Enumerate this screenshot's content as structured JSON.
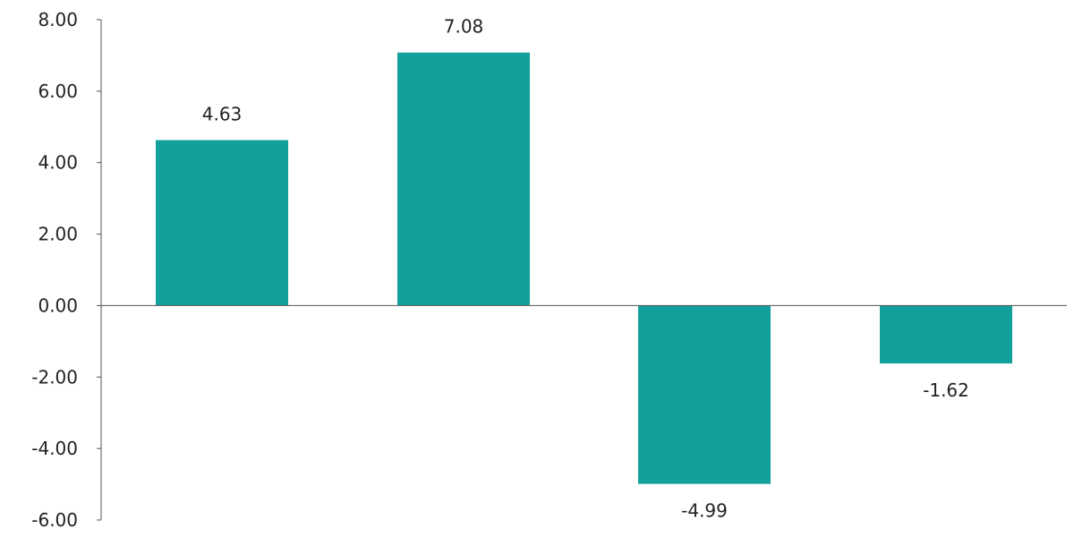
{
  "chart_data": {
    "type": "bar",
    "title": "",
    "xlabel": "",
    "ylabel": "",
    "categories": [
      "",
      "",
      "",
      ""
    ],
    "values": [
      4.63,
      7.08,
      -4.99,
      -1.62
    ],
    "value_labels": [
      "4.63",
      "7.08",
      "-4.99",
      "-1.62"
    ],
    "ylim": [
      -6,
      8
    ],
    "yticks": [
      8,
      6,
      4,
      2,
      0,
      -2,
      -4,
      -6
    ],
    "ytick_labels": [
      "8.00",
      "6.00",
      "4.00",
      "2.00",
      "0.00",
      "-2.00",
      "-4.00",
      "-6.00"
    ],
    "grid": false,
    "legend": "none",
    "bar_color": "#12A09D"
  }
}
